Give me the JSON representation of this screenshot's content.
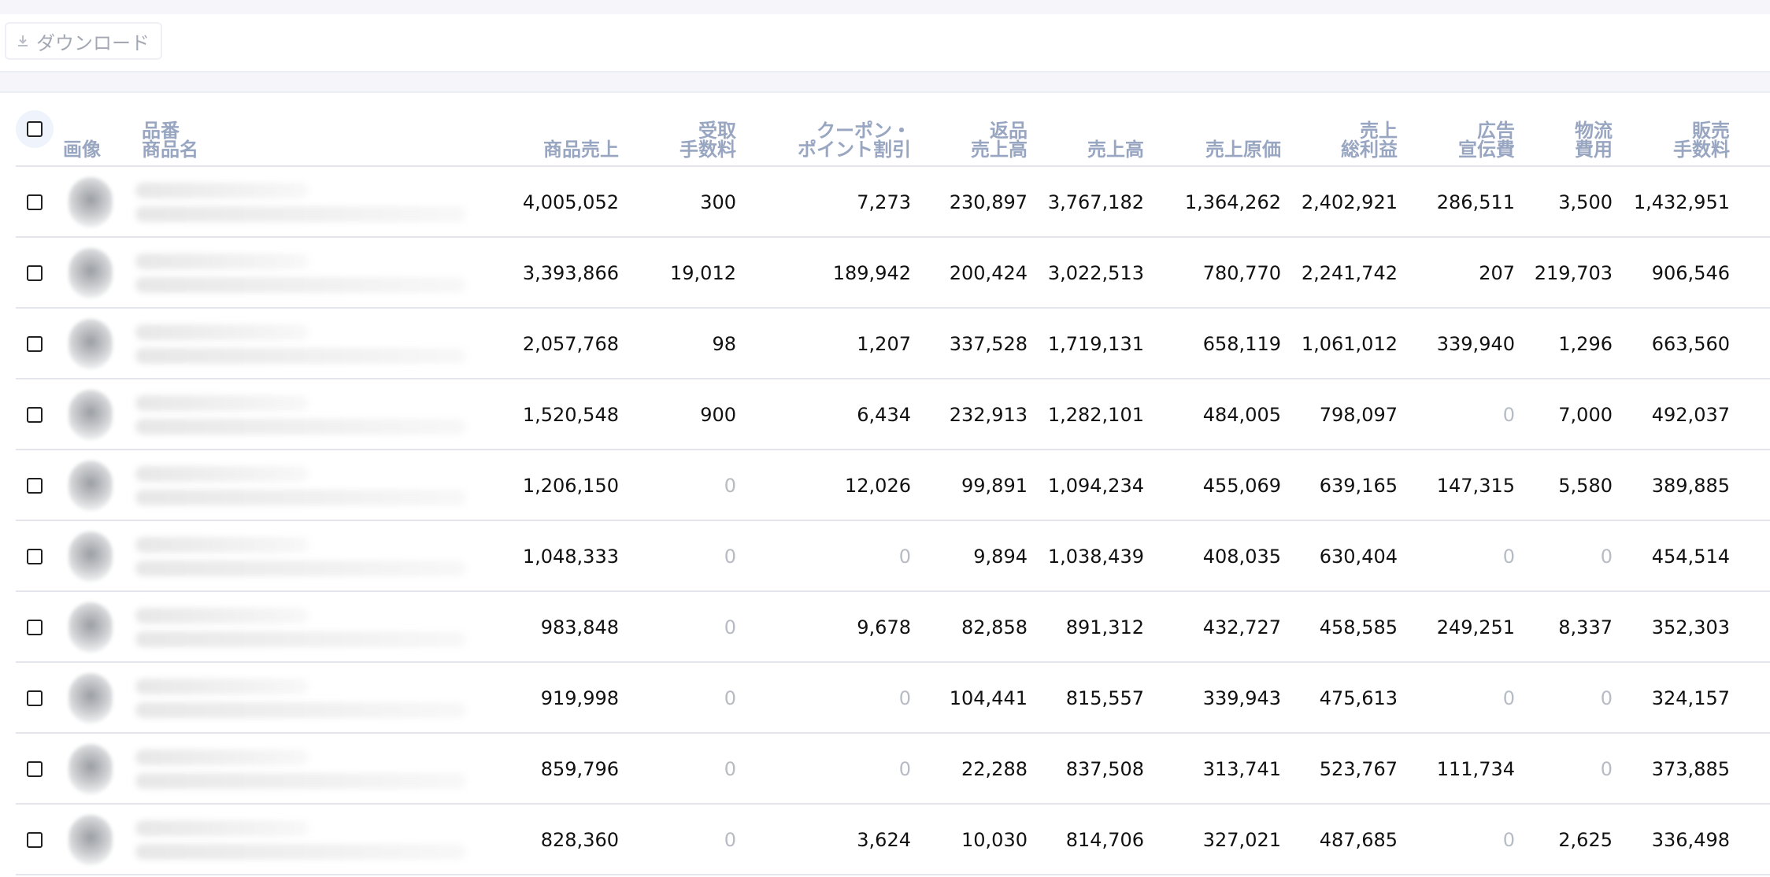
{
  "toolbar": {
    "download_label": "ダウンロード",
    "download_icon": "download-icon"
  },
  "columns": {
    "image": "画像",
    "product": "品番\n商品名",
    "product_sales": "商品売上",
    "receipt_fee": "受取\n手数料",
    "coupon": "クーポン・\nポイント割引",
    "returns": "返品\n売上高",
    "revenue": "売上高",
    "cogs": "売上原価",
    "gross_profit": "売上\n総利益",
    "advertising": "広告\n宣伝費",
    "logistics": "物流\n費用",
    "sales_fee": "販売\n手数料"
  },
  "rows": [
    [
      "4,005,052",
      "300",
      "7,273",
      "230,897",
      "3,767,182",
      "1,364,262",
      "2,402,921",
      "286,511",
      "3,500",
      "1,432,951"
    ],
    [
      "3,393,866",
      "19,012",
      "189,942",
      "200,424",
      "3,022,513",
      "780,770",
      "2,241,742",
      "207",
      "219,703",
      "906,546"
    ],
    [
      "2,057,768",
      "98",
      "1,207",
      "337,528",
      "1,719,131",
      "658,119",
      "1,061,012",
      "339,940",
      "1,296",
      "663,560"
    ],
    [
      "1,520,548",
      "900",
      "6,434",
      "232,913",
      "1,282,101",
      "484,005",
      "798,097",
      "0",
      "7,000",
      "492,037"
    ],
    [
      "1,206,150",
      "0",
      "12,026",
      "99,891",
      "1,094,234",
      "455,069",
      "639,165",
      "147,315",
      "5,580",
      "389,885"
    ],
    [
      "1,048,333",
      "0",
      "0",
      "9,894",
      "1,038,439",
      "408,035",
      "630,404",
      "0",
      "0",
      "454,514"
    ],
    [
      "983,848",
      "0",
      "9,678",
      "82,858",
      "891,312",
      "432,727",
      "458,585",
      "249,251",
      "8,337",
      "352,303"
    ],
    [
      "919,998",
      "0",
      "0",
      "104,441",
      "815,557",
      "339,943",
      "475,613",
      "0",
      "0",
      "324,157"
    ],
    [
      "859,796",
      "0",
      "0",
      "22,288",
      "837,508",
      "313,741",
      "523,767",
      "111,734",
      "0",
      "373,885"
    ],
    [
      "828,360",
      "0",
      "3,624",
      "10,030",
      "814,706",
      "327,021",
      "487,685",
      "0",
      "2,625",
      "336,498"
    ]
  ]
}
